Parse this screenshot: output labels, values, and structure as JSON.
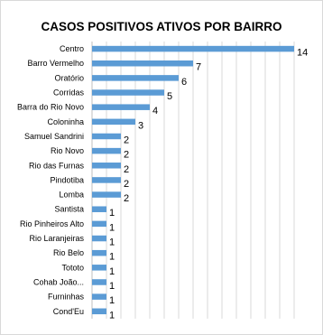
{
  "chart_data": {
    "type": "bar",
    "orientation": "horizontal",
    "title": "CASOS POSITIVOS ATIVOS POR BAIRRO",
    "xlabel": "",
    "ylabel": "",
    "xlim": [
      0,
      14
    ],
    "grid": true,
    "legend": "none",
    "bar_color": "#5b9bd5",
    "grid_color": "#d9d9d9",
    "categories": [
      "Centro",
      "Barro Vermelho",
      "Oratório",
      "Corridas",
      "Barra do Rio Novo",
      "Coloninha",
      "Samuel Sandrini",
      "Rio Novo",
      "Rio das Furnas",
      "Pindotiba",
      "Lomba",
      "Santista",
      "Rio Pinheiros Alto",
      "Rio Laranjeiras",
      "Rio Belo",
      "Tototo",
      "Cohab João...",
      "Furninhas",
      "Cond'Eu"
    ],
    "values": [
      14,
      7,
      6,
      5,
      4,
      3,
      2,
      2,
      2,
      2,
      2,
      1,
      1,
      1,
      1,
      1,
      1,
      1,
      1
    ],
    "data_labels": [
      "14",
      "7",
      "6",
      "5",
      "4",
      "3",
      "2",
      "2",
      "2",
      "2",
      "2",
      "1",
      "1",
      "1",
      "1",
      "1",
      "1",
      "1",
      "1"
    ]
  }
}
